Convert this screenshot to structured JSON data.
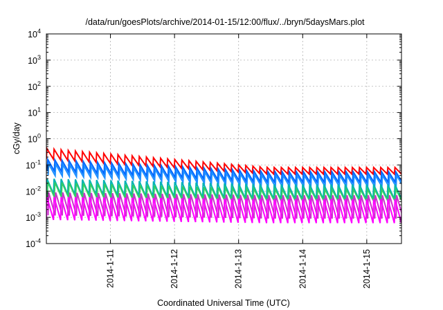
{
  "chart_data": {
    "type": "line",
    "title": "/data/run/goesPlots/archive/2014-01-15/12:00/flux/../bryn/5daysMars.plot",
    "xlabel": "Coordinated Universal Time (UTC)",
    "ylabel": "cGy/day",
    "y_scale": "log",
    "ylim": [
      0.0001,
      10000
    ],
    "y_ticks": [
      {
        "base": "10",
        "exp": "4",
        "value": 10000
      },
      {
        "base": "10",
        "exp": "3",
        "value": 1000
      },
      {
        "base": "10",
        "exp": "2",
        "value": 100
      },
      {
        "base": "10",
        "exp": "1",
        "value": 10
      },
      {
        "base": "10",
        "exp": "0",
        "value": 1
      },
      {
        "base": "10",
        "exp": "-1",
        "value": 0.1
      },
      {
        "base": "10",
        "exp": "-2",
        "value": 0.01
      },
      {
        "base": "10",
        "exp": "-3",
        "value": 0.001
      },
      {
        "base": "10",
        "exp": "-4",
        "value": 0.0001
      }
    ],
    "xlim": [
      "2014-01-10",
      "2014-01-15 13:00"
    ],
    "x_ticks": [
      {
        "label": "2014-1-11",
        "day": 1
      },
      {
        "label": "2014-1-12",
        "day": 2
      },
      {
        "label": "2014-1-13",
        "day": 3
      },
      {
        "label": "2014-1-14",
        "day": 4
      },
      {
        "label": "2014-1-15",
        "day": 5
      }
    ],
    "grid": true,
    "legend": "none",
    "series": [
      {
        "color": "#ff0000",
        "peak_start": 0.42,
        "peak_end": 0.08,
        "trough_start": 0.17,
        "trough_end": 0.045
      },
      {
        "color": "#0066ff",
        "peak_start": 0.16,
        "peak_end": 0.055,
        "trough_start": 0.06,
        "trough_end": 0.022
      },
      {
        "color": "#1e90ff",
        "peak_start": 0.11,
        "peak_end": 0.04,
        "trough_start": 0.04,
        "trough_end": 0.015
      },
      {
        "color": "#00b3b3",
        "peak_start": 0.03,
        "peak_end": 0.018,
        "trough_start": 0.008,
        "trough_end": 0.005
      },
      {
        "color": "#33cc66",
        "peak_start": 0.022,
        "peak_end": 0.012,
        "trough_start": 0.006,
        "trough_end": 0.004
      },
      {
        "color": "#cc33cc",
        "peak_start": 0.009,
        "peak_end": 0.007,
        "trough_start": 0.0012,
        "trough_end": 0.0009
      },
      {
        "color": "#ff00ff",
        "peak_start": 0.006,
        "peak_end": 0.005,
        "trough_start": 0.0008,
        "trough_end": 0.0006
      }
    ]
  }
}
